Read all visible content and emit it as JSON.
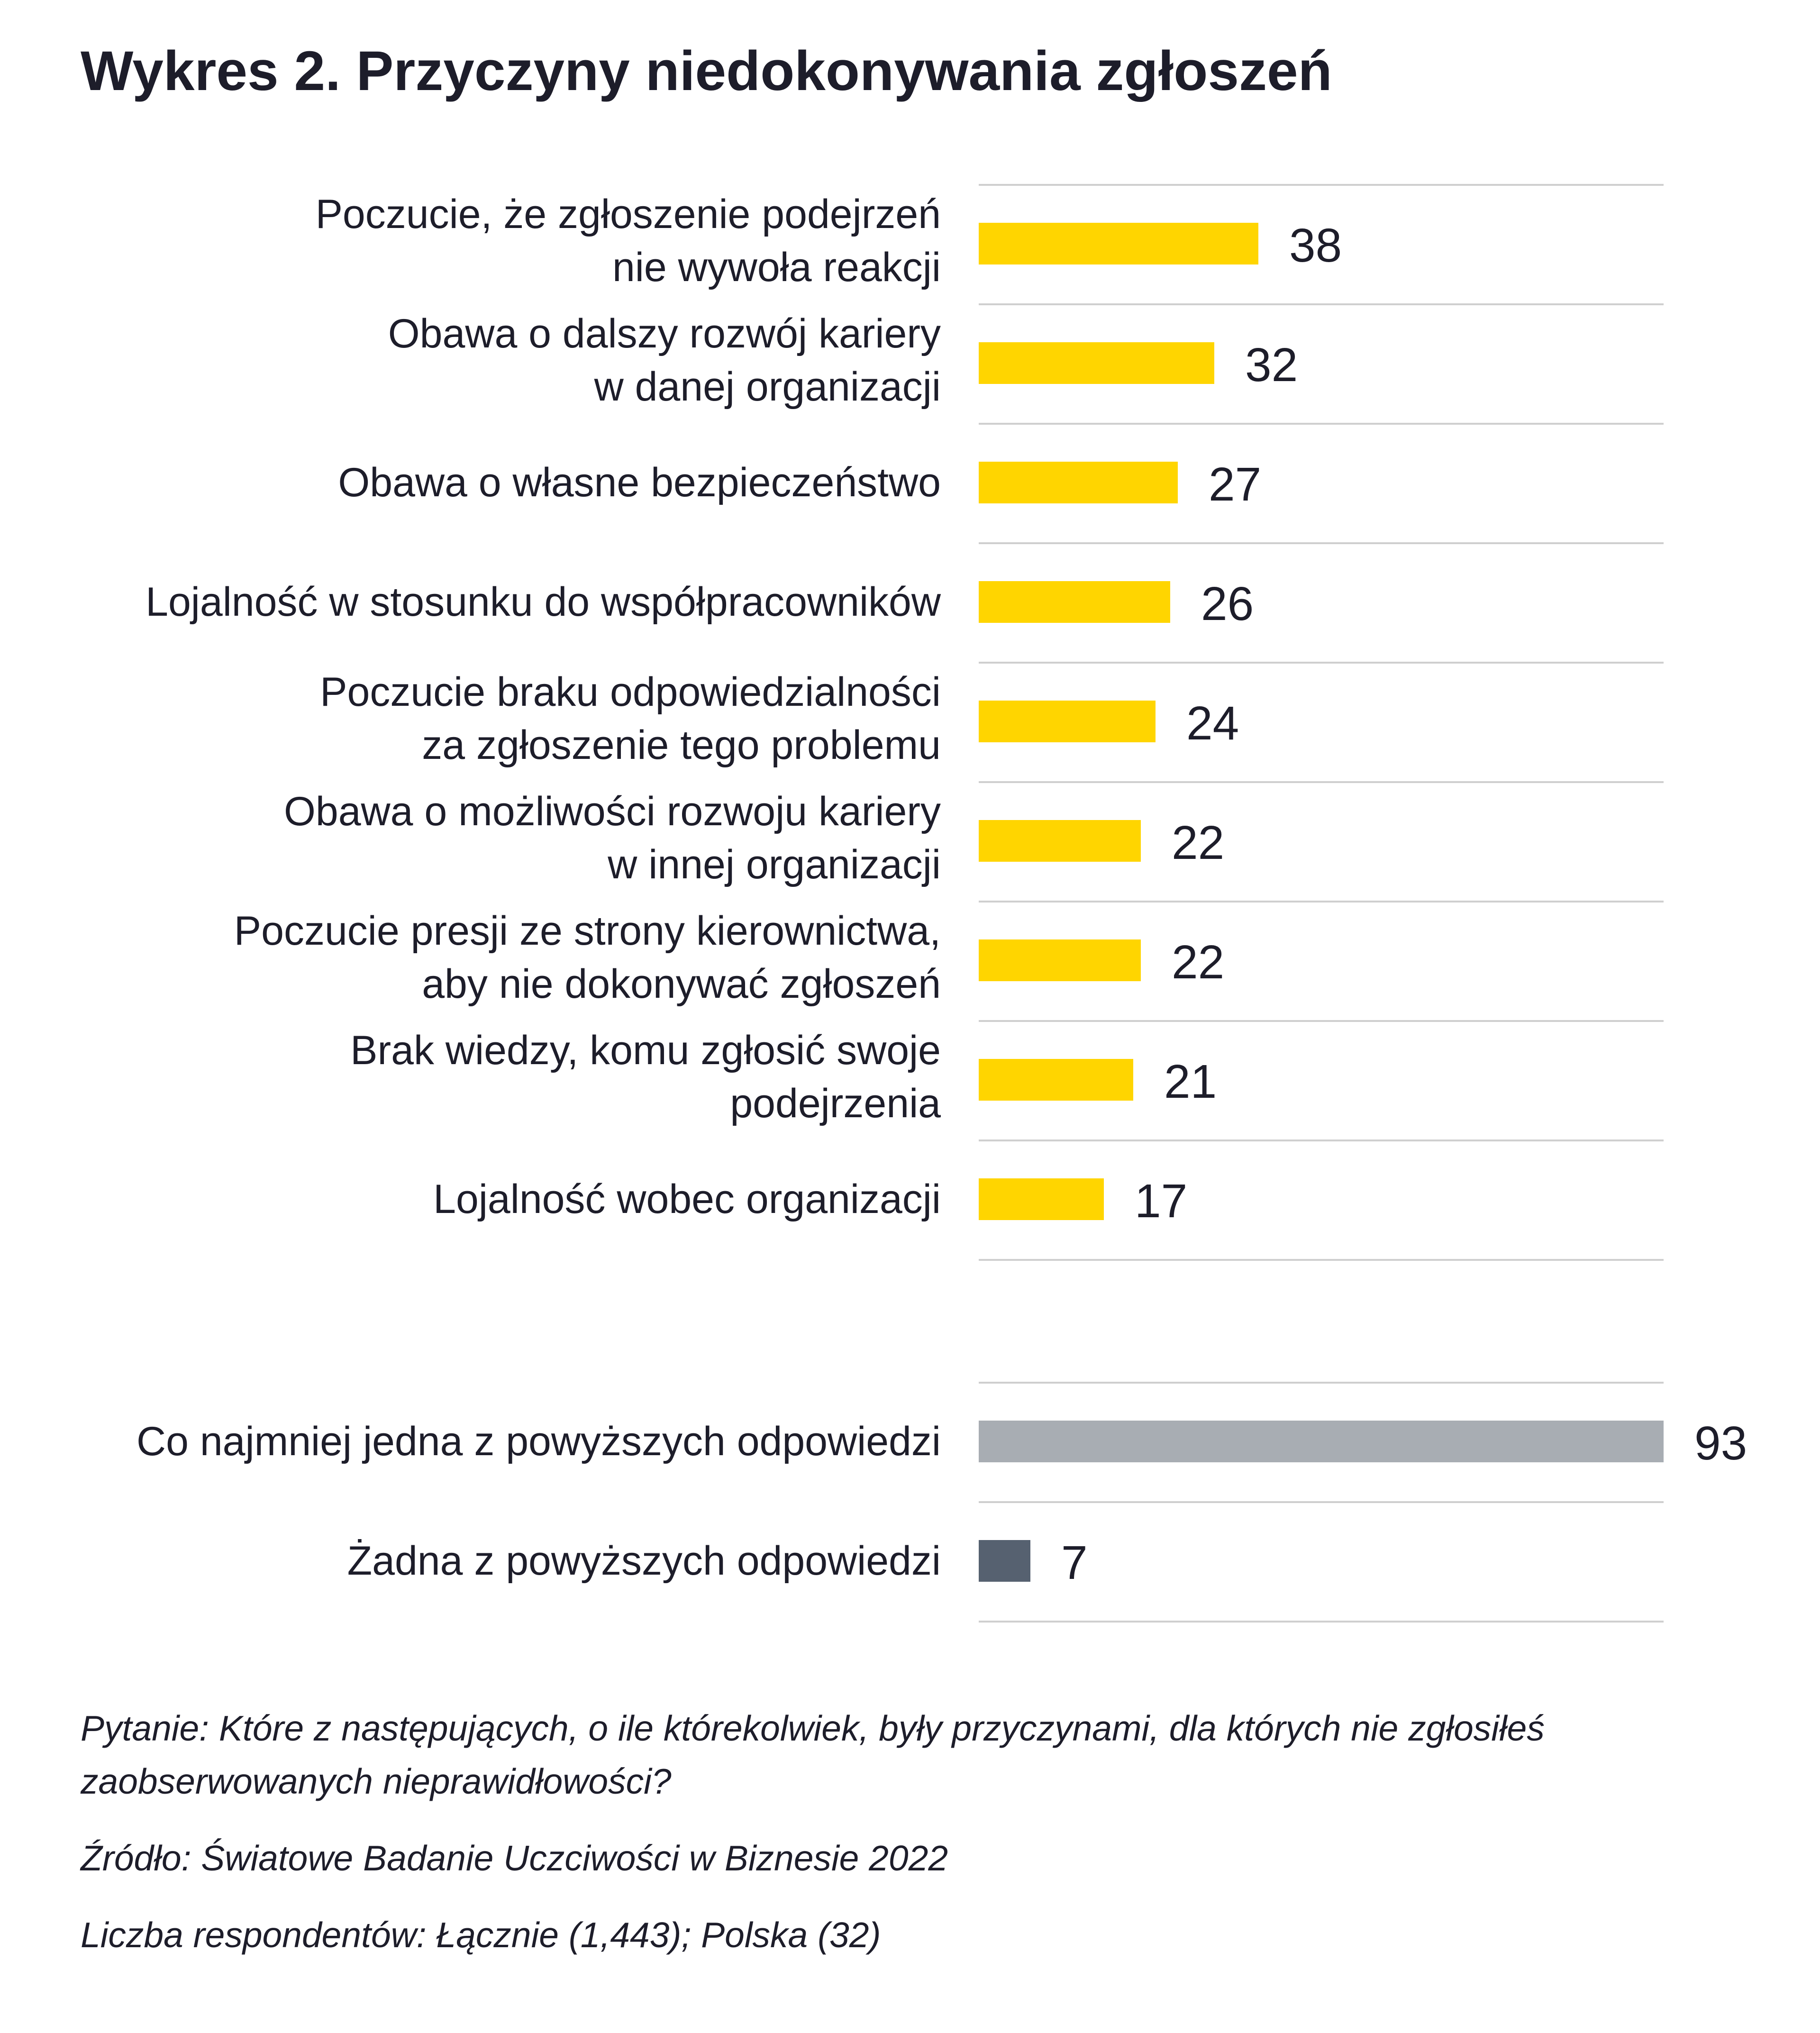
{
  "title": "Wykres 2. Przyczyny niedokonywania zgłoszeń",
  "colors": {
    "main": "#FFD500",
    "any": "#A8ADB3",
    "none": "#566170",
    "grid": "#CFCFCF"
  },
  "chart_data": {
    "type": "bar",
    "orientation": "horizontal",
    "unit": "%",
    "xlim": [
      0,
      93
    ],
    "grid": "horizontal separators between categories",
    "groups": [
      {
        "name": "main",
        "color": "#FFD500",
        "categories": [
          "Poczucie, że zgłoszenie podejrzeń\nnie wywoła reakcji",
          "Obawa o dalszy rozwój kariery\nw danej organizacji",
          "Obawa o własne bezpieczeństwo",
          "Lojalność w stosunku do współpracowników",
          "Poczucie braku odpowiedzialności\nza zgłoszenie tego problemu",
          "Obawa o możliwości rozwoju kariery\nw innej organizacji",
          "Poczucie presji ze strony kierownictwa,\naby nie dokonywać zgłoszeń",
          "Brak wiedzy, komu zgłosić swoje\npodejrzenia",
          "Lojalność wobec organizacji"
        ],
        "values": [
          38,
          32,
          27,
          26,
          24,
          22,
          22,
          21,
          17
        ]
      },
      {
        "name": "summary",
        "categories": [
          "Co najmniej jedna z powyższych odpowiedzi",
          "Żadna z powyższych odpowiedzi"
        ],
        "values": [
          93,
          7
        ],
        "colors": [
          "#A8ADB3",
          "#566170"
        ]
      }
    ]
  },
  "notes": {
    "question": "Pytanie: Które z następujących, o ile którekolwiek, były przyczynami, dla których nie zgłosiłeś zaobserwowanych nieprawidłowości?",
    "source": "Źródło: Światowe Badanie Uczciwości w Biznesie 2022",
    "respondents": "Liczba respondentów: Łącznie (1,443); Polska (32)"
  }
}
